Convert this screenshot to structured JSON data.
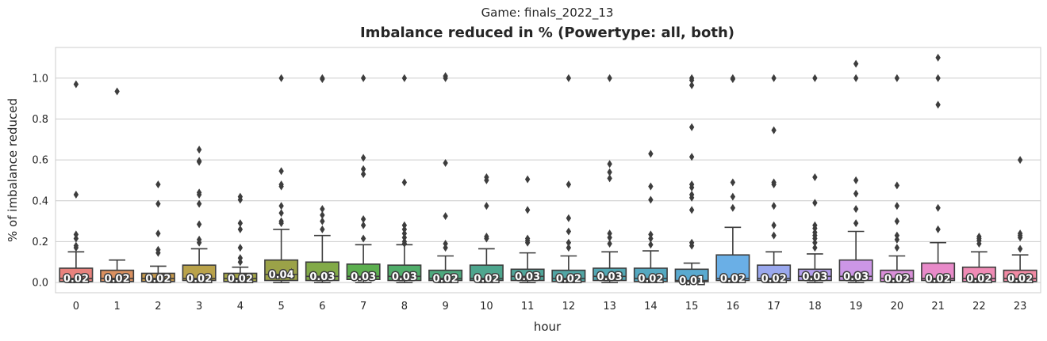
{
  "suptitle": "Game: finals_2022_13",
  "chart_data": {
    "type": "box",
    "title": "Imbalance reduced in % (Powertype: all, both)",
    "xlabel": "hour",
    "ylabel": "% of imbalance reduced",
    "ylim": [
      -0.05,
      1.15
    ],
    "yticks": [
      "0.0",
      "0.2",
      "0.4",
      "0.6",
      "0.8",
      "1.0"
    ],
    "grid": true,
    "categories": [
      "0",
      "1",
      "2",
      "3",
      "4",
      "5",
      "6",
      "7",
      "8",
      "9",
      "10",
      "11",
      "12",
      "13",
      "14",
      "15",
      "16",
      "17",
      "18",
      "19",
      "20",
      "21",
      "22",
      "23"
    ],
    "boxes": [
      {
        "q1": 0.005,
        "median": 0.02,
        "q3": 0.07,
        "whisker_low": 0.0,
        "whisker_high": 0.15,
        "color": "#e8827d",
        "label": "0.02",
        "outliers": [
          0.97,
          0.43,
          0.235,
          0.215,
          0.18,
          0.17
        ]
      },
      {
        "q1": 0.005,
        "median": 0.02,
        "q3": 0.06,
        "whisker_low": 0.0,
        "whisker_high": 0.11,
        "color": "#d99060",
        "label": "0.02",
        "outliers": [
          0.935
        ]
      },
      {
        "q1": 0.005,
        "median": 0.02,
        "q3": 0.045,
        "whisker_low": 0.0,
        "whisker_high": 0.08,
        "color": "#c79a4c",
        "label": "0.02",
        "outliers": [
          0.48,
          0.385,
          0.24,
          0.16,
          0.145
        ]
      },
      {
        "q1": 0.01,
        "median": 0.02,
        "q3": 0.085,
        "whisker_low": 0.0,
        "whisker_high": 0.165,
        "color": "#b9a24a",
        "label": "0.02",
        "outliers": [
          0.65,
          0.595,
          0.59,
          0.44,
          0.43,
          0.385,
          0.285,
          0.21,
          0.195
        ]
      },
      {
        "q1": 0.005,
        "median": 0.02,
        "q3": 0.045,
        "whisker_low": 0.0,
        "whisker_high": 0.075,
        "color": "#a7a847",
        "label": "0.02",
        "outliers": [
          0.42,
          0.405,
          0.29,
          0.26,
          0.17,
          0.12,
          0.1
        ]
      },
      {
        "q1": 0.01,
        "median": 0.04,
        "q3": 0.11,
        "whisker_low": 0.0,
        "whisker_high": 0.26,
        "color": "#9ba248",
        "label": "0.04",
        "outliers": [
          1.0,
          0.545,
          0.48,
          0.47,
          0.375,
          0.34,
          0.3,
          0.29
        ]
      },
      {
        "q1": 0.01,
        "median": 0.03,
        "q3": 0.1,
        "whisker_low": 0.0,
        "whisker_high": 0.23,
        "color": "#82aa48",
        "label": "0.03",
        "outliers": [
          1.0,
          0.995,
          0.36,
          0.33,
          0.3,
          0.26
        ]
      },
      {
        "q1": 0.015,
        "median": 0.03,
        "q3": 0.09,
        "whisker_low": 0.0,
        "whisker_high": 0.185,
        "color": "#5caf4f",
        "label": "0.03",
        "outliers": [
          1.0,
          0.61,
          0.555,
          0.53,
          0.31,
          0.28,
          0.215
        ]
      },
      {
        "q1": 0.01,
        "median": 0.03,
        "q3": 0.085,
        "whisker_low": 0.0,
        "whisker_high": 0.185,
        "color": "#50ad6a",
        "label": "0.03",
        "outliers": [
          1.0,
          0.49,
          0.28,
          0.26,
          0.24,
          0.22,
          0.2,
          0.19
        ]
      },
      {
        "q1": 0.01,
        "median": 0.02,
        "q3": 0.06,
        "whisker_low": 0.0,
        "whisker_high": 0.13,
        "color": "#4ea97e",
        "label": "0.02",
        "outliers": [
          1.01,
          1.0,
          0.585,
          0.325,
          0.19,
          0.17
        ]
      },
      {
        "q1": 0.01,
        "median": 0.02,
        "q3": 0.085,
        "whisker_low": 0.0,
        "whisker_high": 0.165,
        "color": "#4ea68e",
        "label": "0.02",
        "outliers": [
          0.515,
          0.5,
          0.375,
          0.225,
          0.215
        ]
      },
      {
        "q1": 0.01,
        "median": 0.03,
        "q3": 0.065,
        "whisker_low": 0.0,
        "whisker_high": 0.145,
        "color": "#50a599",
        "label": "0.03",
        "outliers": [
          0.505,
          0.355,
          0.215,
          0.205,
          0.195
        ]
      },
      {
        "q1": 0.005,
        "median": 0.02,
        "q3": 0.06,
        "whisker_low": 0.0,
        "whisker_high": 0.13,
        "color": "#51a5a4",
        "label": "0.02",
        "outliers": [
          1.0,
          0.48,
          0.315,
          0.25,
          0.195,
          0.17
        ]
      },
      {
        "q1": 0.01,
        "median": 0.03,
        "q3": 0.07,
        "whisker_low": 0.0,
        "whisker_high": 0.15,
        "color": "#52a7b3",
        "label": "0.03",
        "outliers": [
          1.0,
          0.58,
          0.54,
          0.51,
          0.24,
          0.22,
          0.19
        ]
      },
      {
        "q1": 0.005,
        "median": 0.02,
        "q3": 0.07,
        "whisker_low": 0.0,
        "whisker_high": 0.155,
        "color": "#54a8c0",
        "label": "0.02",
        "outliers": [
          0.63,
          0.47,
          0.405,
          0.235,
          0.215,
          0.185
        ]
      },
      {
        "q1": 0.005,
        "median": 0.01,
        "q3": 0.065,
        "whisker_low": 0.0,
        "whisker_high": 0.095,
        "color": "#5aaad0",
        "label": "0.01",
        "outliers": [
          1.0,
          0.99,
          0.965,
          0.76,
          0.615,
          0.48,
          0.465,
          0.43,
          0.415,
          0.355,
          0.195,
          0.18
        ]
      },
      {
        "q1": 0.01,
        "median": 0.02,
        "q3": 0.135,
        "whisker_low": 0.0,
        "whisker_high": 0.27,
        "color": "#6aafe6",
        "label": "0.02",
        "outliers": [
          1.0,
          0.995,
          0.49,
          0.42,
          0.365
        ]
      },
      {
        "q1": 0.01,
        "median": 0.02,
        "q3": 0.085,
        "whisker_low": 0.0,
        "whisker_high": 0.15,
        "color": "#9aa8ee",
        "label": "0.02",
        "outliers": [
          1.0,
          0.745,
          0.49,
          0.48,
          0.375,
          0.28,
          0.23
        ]
      },
      {
        "q1": 0.01,
        "median": 0.03,
        "q3": 0.065,
        "whisker_low": 0.0,
        "whisker_high": 0.14,
        "color": "#b39ded",
        "label": "0.03",
        "outliers": [
          1.0,
          0.515,
          0.39,
          0.28,
          0.265,
          0.245,
          0.23,
          0.215,
          0.195,
          0.17
        ]
      },
      {
        "q1": 0.01,
        "median": 0.03,
        "q3": 0.11,
        "whisker_low": 0.0,
        "whisker_high": 0.25,
        "color": "#cc96e6",
        "label": "0.03",
        "outliers": [
          1.07,
          1.0,
          0.5,
          0.435,
          0.36,
          0.29
        ]
      },
      {
        "q1": 0.005,
        "median": 0.02,
        "q3": 0.06,
        "whisker_low": 0.0,
        "whisker_high": 0.13,
        "color": "#d98fd8",
        "label": "0.02",
        "outliers": [
          1.0,
          0.475,
          0.375,
          0.3,
          0.23,
          0.21,
          0.17
        ]
      },
      {
        "q1": 0.01,
        "median": 0.02,
        "q3": 0.095,
        "whisker_low": 0.0,
        "whisker_high": 0.195,
        "color": "#e88ac9",
        "label": "0.02",
        "outliers": [
          1.1,
          1.0,
          0.87,
          0.365,
          0.26
        ]
      },
      {
        "q1": 0.005,
        "median": 0.02,
        "q3": 0.075,
        "whisker_low": 0.0,
        "whisker_high": 0.15,
        "color": "#ef8bb5",
        "label": "0.02",
        "outliers": [
          0.225,
          0.215,
          0.205,
          0.19
        ]
      },
      {
        "q1": 0.005,
        "median": 0.02,
        "q3": 0.06,
        "whisker_low": 0.0,
        "whisker_high": 0.135,
        "color": "#f08aa3",
        "label": "0.02",
        "outliers": [
          0.6,
          0.24,
          0.23,
          0.22,
          0.165
        ]
      }
    ]
  }
}
